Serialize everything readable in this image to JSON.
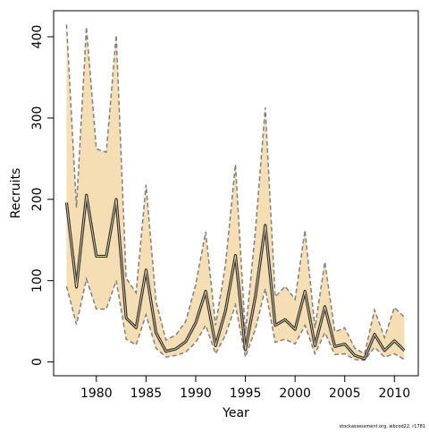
{
  "chart_data": {
    "type": "line",
    "xlabel": "Year",
    "ylabel": "Recruits",
    "caption": "stockassessment.org, wbcod22, r1781",
    "x": [
      1977,
      1978,
      1979,
      1980,
      1981,
      1982,
      1983,
      1984,
      1985,
      1986,
      1987,
      1988,
      1989,
      1990,
      1991,
      1992,
      1993,
      1994,
      1995,
      1996,
      1997,
      1998,
      1999,
      2000,
      2001,
      2002,
      2003,
      2004,
      2005,
      2006,
      2007,
      2008,
      2009,
      2010,
      2011
    ],
    "values": [
      196,
      92,
      205,
      130,
      130,
      200,
      54,
      42,
      113,
      36,
      13,
      16,
      25,
      48,
      87,
      20,
      63,
      131,
      15,
      80,
      168,
      45,
      52,
      40,
      87,
      20,
      68,
      19,
      22,
      8,
      4,
      34,
      14,
      26,
      14
    ],
    "upper": [
      415,
      190,
      412,
      262,
      258,
      402,
      103,
      85,
      218,
      75,
      27,
      33,
      50,
      95,
      160,
      45,
      120,
      243,
      35,
      160,
      313,
      80,
      93,
      77,
      162,
      42,
      123,
      37,
      42,
      17,
      10,
      64,
      30,
      67,
      55
    ],
    "lower": [
      93,
      46,
      102,
      65,
      65,
      100,
      28,
      21,
      58,
      17,
      6,
      8,
      12,
      24,
      45,
      10,
      33,
      70,
      6,
      40,
      90,
      24,
      28,
      22,
      45,
      10,
      36,
      9,
      10,
      3,
      2,
      18,
      6,
      10,
      3
    ],
    "color": "#333333",
    "band_color": "#f5deb3",
    "band_edge_color": "#808080",
    "xlim": [
      1975.7,
      2012.4
    ],
    "ylim": [
      -17,
      432
    ],
    "xticks": [
      1980,
      1985,
      1990,
      1995,
      2000,
      2005,
      2010
    ],
    "yticks": [
      0,
      100,
      200,
      300,
      400
    ]
  }
}
